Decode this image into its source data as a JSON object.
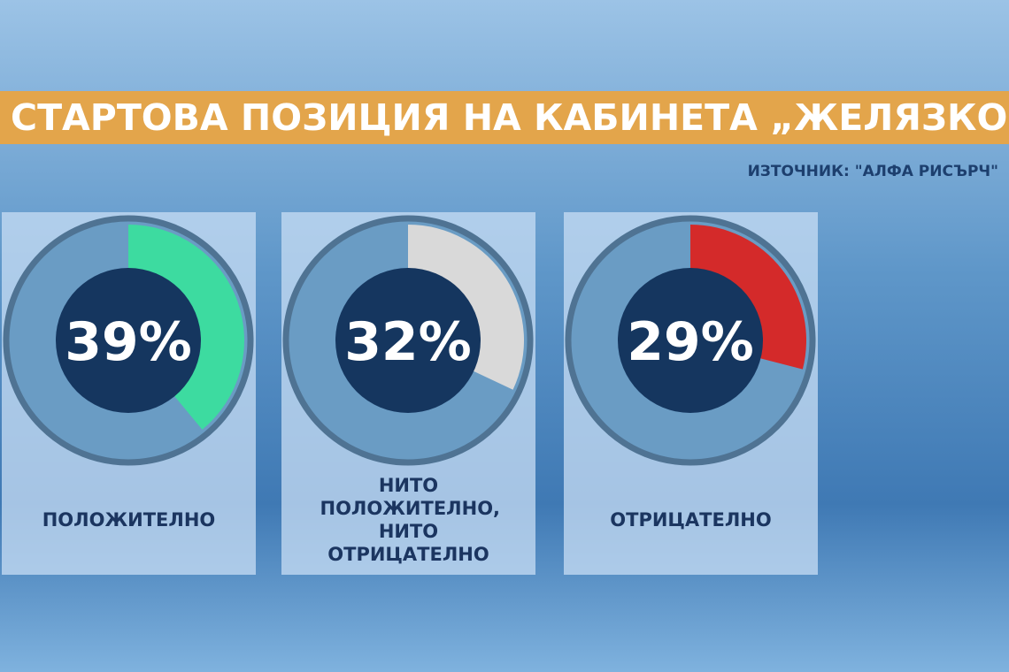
{
  "title": "СТАРТОВА ПОЗИЦИЯ НА КАБИНЕТА „ЖЕЛЯЗКОВ“",
  "source": "ИЗТОЧНИК: \"АЛФА РИСЪРЧ\"",
  "chart_data": [
    {
      "type": "donut",
      "categories": [
        "ПОЛОЖИТЕЛНО"
      ],
      "values": [
        39
      ],
      "value_labels": [
        "39%"
      ],
      "color": "#3ddba0"
    },
    {
      "type": "donut",
      "categories": [
        "НИТО ПОЛОЖИТЕЛНО, НИТО ОТРИЦАТЕЛНО"
      ],
      "values": [
        32
      ],
      "value_labels": [
        "32%"
      ],
      "color": "#d9d9d9"
    },
    {
      "type": "donut",
      "categories": [
        "ОТРИЦАТЕЛНО"
      ],
      "values": [
        29
      ],
      "value_labels": [
        "29%"
      ],
      "color": "#d42a2a"
    }
  ]
}
